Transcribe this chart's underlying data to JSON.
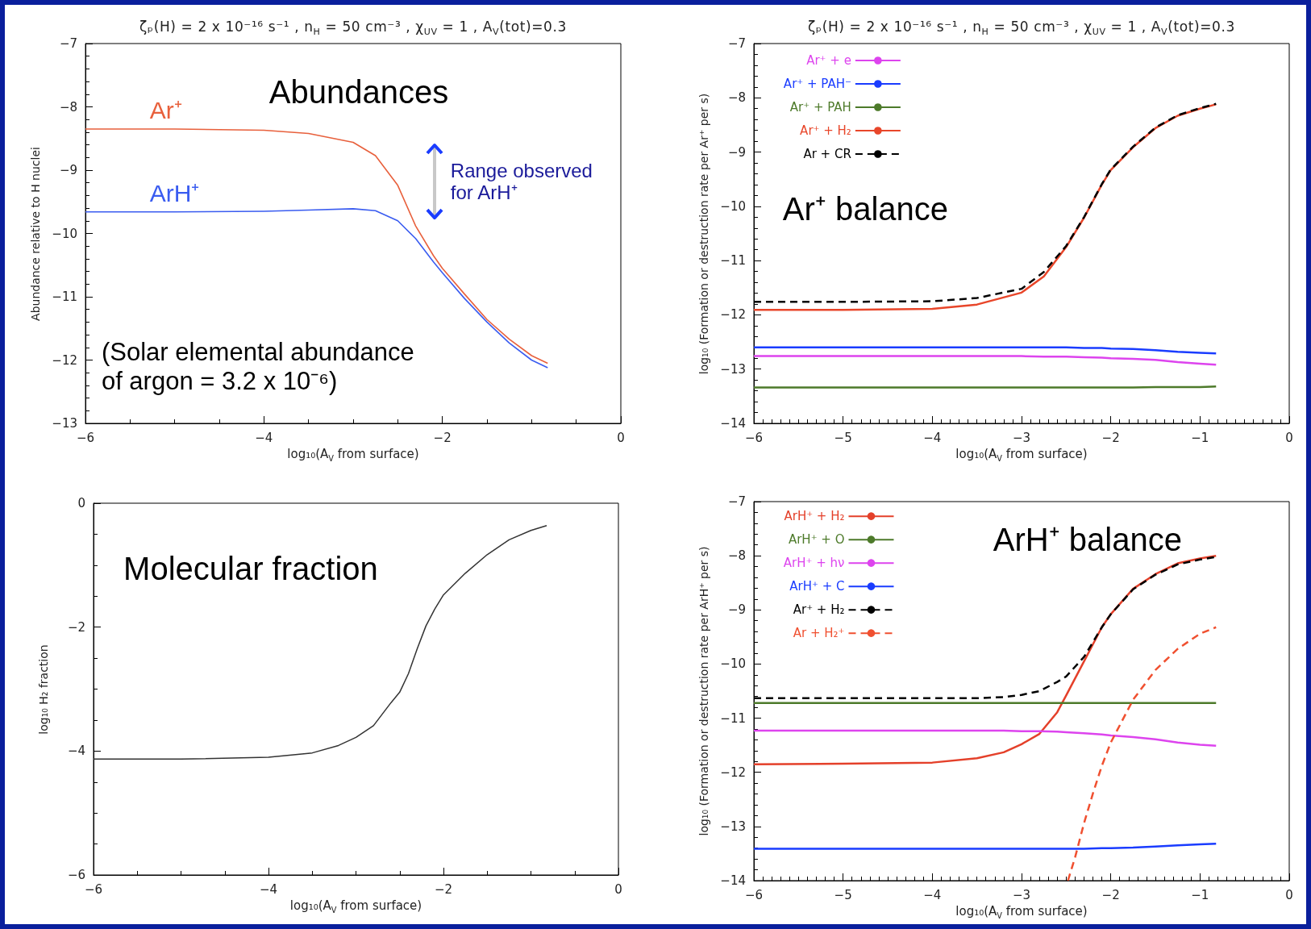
{
  "chart_data": [
    {
      "type": "line",
      "title": "ζₚ(H) = 2 x 10⁻¹⁶ s⁻¹ , n$_{H}$ = 50 cm⁻³ , χ$_{UV}$ = 1 , A$_{V}$(tot)=0.3",
      "xlabel": "log₁₀(A$_{V}$ from surface)",
      "ylabel": "Abundance relative to H nuclei",
      "annotations": [
        "Abundances",
        "Range observed for ArH⁺",
        "(Solar elemental abundance of argon = 3.2 x 10⁻⁶)"
      ],
      "x": [
        -6,
        -5,
        -4,
        -3.5,
        -3,
        -2.75,
        -2.5,
        -2.3,
        -2.1,
        -2,
        -1.75,
        -1.5,
        -1.25,
        -1,
        -0.82
      ],
      "series": [
        {
          "name": "Ar⁺",
          "color": "#e8603c",
          "values": [
            -8.35,
            -8.35,
            -8.37,
            -8.42,
            -8.56,
            -8.77,
            -9.24,
            -9.88,
            -10.35,
            -10.55,
            -10.96,
            -11.36,
            -11.67,
            -11.93,
            -12.05
          ]
        },
        {
          "name": "ArH⁺",
          "color": "#3a5cf0",
          "values": [
            -9.66,
            -9.66,
            -9.65,
            -9.63,
            -9.61,
            -9.64,
            -9.8,
            -10.08,
            -10.45,
            -10.62,
            -11.03,
            -11.4,
            -11.73,
            -12.0,
            -12.12
          ]
        }
      ],
      "xlim": [
        -6,
        0
      ],
      "xticks": [
        -6,
        -4,
        -2,
        0
      ],
      "ylim": [
        -13,
        -7
      ],
      "yticks": [
        -13,
        -12,
        -11,
        -10,
        -9,
        -8,
        -7
      ],
      "marker": "none",
      "legend": false
    },
    {
      "type": "line",
      "title": "ζₚ(H) = 2 x 10⁻¹⁶ s⁻¹ , n$_{H}$ = 50 cm⁻³ , χ$_{UV}$ = 1 , A$_{V}$(tot)=0.3",
      "xlabel": "log₁₀(A$_{V}$ from surface)",
      "ylabel": "log₁₀ (Formation or destruction rate per Ar⁺ per s)",
      "annotations": [
        "Ar⁺ balance"
      ],
      "x": [
        -6,
        -5,
        -4,
        -3.5,
        -3,
        -2.75,
        -2.5,
        -2.3,
        -2.1,
        -2,
        -1.75,
        -1.5,
        -1.25,
        -1,
        -0.82
      ],
      "series": [
        {
          "name": "Ar⁺ + e",
          "color": "#dd44ee",
          "values": [
            -12.76,
            -12.76,
            -12.76,
            -12.76,
            -12.76,
            -12.77,
            -12.77,
            -12.78,
            -12.79,
            -12.8,
            -12.81,
            -12.83,
            -12.87,
            -12.9,
            -12.92
          ]
        },
        {
          "name": "Ar⁺ + PAH⁻",
          "color": "#1a3cff",
          "values": [
            -12.6,
            -12.6,
            -12.6,
            -12.6,
            -12.6,
            -12.6,
            -12.6,
            -12.61,
            -12.61,
            -12.62,
            -12.63,
            -12.65,
            -12.68,
            -12.7,
            -12.71
          ]
        },
        {
          "name": "Ar⁺ + PAH",
          "color": "#4d7a2a",
          "values": [
            -13.34,
            -13.34,
            -13.34,
            -13.34,
            -13.34,
            -13.34,
            -13.34,
            -13.34,
            -13.34,
            -13.34,
            -13.34,
            -13.33,
            -13.33,
            -13.33,
            -13.32
          ]
        },
        {
          "name": "Ar⁺ + H₂",
          "color": "#e8462a",
          "values": [
            -11.91,
            -11.91,
            -11.89,
            -11.81,
            -11.59,
            -11.29,
            -10.75,
            -10.21,
            -9.6,
            -9.33,
            -8.91,
            -8.56,
            -8.33,
            -8.2,
            -8.12
          ]
        },
        {
          "name": "Ar + CR",
          "color": "#000000",
          "line_style": "dashed",
          "values": [
            -11.76,
            -11.76,
            -11.75,
            -11.69,
            -11.52,
            -11.21,
            -10.73,
            -10.2,
            -9.59,
            -9.32,
            -8.9,
            -8.55,
            -8.32,
            -8.19,
            -8.11
          ]
        }
      ],
      "xlim": [
        -6,
        0
      ],
      "xticks": [
        -6,
        -5,
        -4,
        -3,
        -2,
        -1,
        0
      ],
      "ylim": [
        -14,
        -7
      ],
      "yticks": [
        -14,
        -13,
        -12,
        -11,
        -10,
        -9,
        -8,
        -7
      ],
      "marker": "none",
      "legend": "top left"
    },
    {
      "type": "line",
      "xlabel": "log₁₀(A$_{V}$ from surface)",
      "ylabel": "log₁₀ H₂ fraction",
      "annotations": [
        "Molecular fraction"
      ],
      "x": [
        -6,
        -5,
        -4,
        -3.5,
        -3.2,
        -3,
        -2.8,
        -2.6,
        -2.5,
        -2.4,
        -2.3,
        -2.2,
        -2.1,
        -2,
        -1.75,
        -1.5,
        -1.25,
        -1,
        -0.82
      ],
      "series": [
        {
          "color": "#333333",
          "values": [
            -4.13,
            -4.13,
            -4.1,
            -4.03,
            -3.91,
            -3.78,
            -3.59,
            -3.22,
            -3.05,
            -2.75,
            -2.35,
            -1.98,
            -1.71,
            -1.48,
            -1.13,
            -0.83,
            -0.59,
            -0.44,
            -0.36
          ]
        }
      ],
      "xlim": [
        -6,
        0
      ],
      "xticks": [
        -6,
        -4,
        -2,
        0
      ],
      "ylim": [
        -6,
        0
      ],
      "yticks": [
        -6,
        -4,
        -2,
        0
      ],
      "marker": "none"
    },
    {
      "type": "line",
      "xlabel": "log₁₀(A$_{V}$ from surface)",
      "ylabel": "log₁₀ (Formation or destruction rate per ArH⁺ per s)",
      "annotations": [
        "ArH⁺ balance"
      ],
      "x": [
        -6,
        -5,
        -4,
        -3.5,
        -3.2,
        -3,
        -2.8,
        -2.6,
        -2.5,
        -2.3,
        -2.1,
        -2,
        -1.75,
        -1.5,
        -1.25,
        -1,
        -0.82
      ],
      "series": [
        {
          "name": "ArH⁺ + H₂",
          "color": "#e4402a",
          "values": [
            -11.85,
            -11.84,
            -11.82,
            -11.74,
            -11.63,
            -11.48,
            -11.29,
            -10.89,
            -10.58,
            -9.95,
            -9.32,
            -9.08,
            -8.61,
            -8.34,
            -8.14,
            -8.05,
            -8.0
          ]
        },
        {
          "name": "ArH⁺ + O",
          "color": "#4d7a2a",
          "values": [
            -10.72,
            -10.72,
            -10.72,
            -10.72,
            -10.72,
            -10.72,
            -10.72,
            -10.72,
            -10.72,
            -10.72,
            -10.72,
            -10.72,
            -10.72,
            -10.72,
            -10.72,
            -10.72,
            -10.72
          ]
        },
        {
          "name": "ArH⁺ + hν",
          "color": "#dd44ee",
          "values": [
            -11.23,
            -11.23,
            -11.23,
            -11.23,
            -11.23,
            -11.24,
            -11.24,
            -11.25,
            -11.26,
            -11.28,
            -11.3,
            -11.32,
            -11.35,
            -11.39,
            -11.45,
            -11.49,
            -11.51
          ]
        },
        {
          "name": "ArH⁺ + C",
          "color": "#1a3cff",
          "values": [
            -13.41,
            -13.41,
            -13.41,
            -13.41,
            -13.41,
            -13.41,
            -13.41,
            -13.41,
            -13.41,
            -13.41,
            -13.4,
            -13.4,
            -13.39,
            -13.37,
            -13.35,
            -13.33,
            -13.32
          ]
        },
        {
          "name": "Ar⁺ + H₂",
          "color": "#000000",
          "line_style": "dashed",
          "values": [
            -10.63,
            -10.63,
            -10.63,
            -10.63,
            -10.61,
            -10.57,
            -10.5,
            -10.33,
            -10.23,
            -9.87,
            -9.32,
            -9.08,
            -8.62,
            -8.35,
            -8.16,
            -8.07,
            -8.02
          ]
        },
        {
          "name": "Ar + H₂⁺",
          "color": "#f05030",
          "line_style": "dashed",
          "x": [
            -2.48,
            -2.4,
            -2.3,
            -2.2,
            -2.1,
            -2,
            -1.75,
            -1.5,
            -1.25,
            -1,
            -0.82
          ],
          "values": [
            -14,
            -13.57,
            -12.94,
            -12.39,
            -11.88,
            -11.45,
            -10.66,
            -10.11,
            -9.72,
            -9.44,
            -9.32
          ]
        }
      ],
      "xlim": [
        -6,
        0
      ],
      "xticks": [
        -6,
        -5,
        -4,
        -3,
        -2,
        -1,
        0
      ],
      "ylim": [
        -14,
        -7
      ],
      "yticks": [
        -14,
        -13,
        -12,
        -11,
        -10,
        -9,
        -8,
        -7
      ],
      "marker": "none",
      "legend": "top left"
    }
  ]
}
